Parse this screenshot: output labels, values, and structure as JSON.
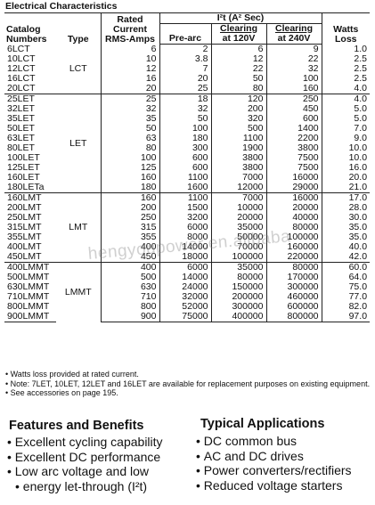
{
  "title": "Electrical Characteristics",
  "headers": {
    "catalog_line1": "Catalog",
    "catalog_line2": "Numbers",
    "type": "Type",
    "rated_line1": "Rated",
    "rated_line2": "Current",
    "rated_line3": "RMS-Amps",
    "i2t_group": "I²t (A² Sec)",
    "prearc": "Pre-arc",
    "clear120_line1": "Clearing",
    "clear120_line2": "at 120V",
    "clear240_line1": "Clearing",
    "clear240_line2": "at 240V",
    "watts_line1": "Watts",
    "watts_line2": "Loss"
  },
  "groups": [
    {
      "type": "LCT",
      "rows": [
        {
          "catalog": "6LCT",
          "rated": "6",
          "prearc": "2",
          "c120": "6",
          "c240": "9",
          "watts": "1.0"
        },
        {
          "catalog": "10LCT",
          "rated": "10",
          "prearc": "3.8",
          "c120": "12",
          "c240": "22",
          "watts": "2.5"
        },
        {
          "catalog": "12LCT",
          "rated": "12",
          "prearc": "7",
          "c120": "22",
          "c240": "32",
          "watts": "2.5"
        },
        {
          "catalog": "16LCT",
          "rated": "16",
          "prearc": "20",
          "c120": "50",
          "c240": "100",
          "watts": "2.5"
        },
        {
          "catalog": "20LCT",
          "rated": "20",
          "prearc": "25",
          "c120": "80",
          "c240": "160",
          "watts": "4.0"
        }
      ]
    },
    {
      "type": "LET",
      "rows": [
        {
          "catalog": "25LET",
          "rated": "25",
          "prearc": "18",
          "c120": "120",
          "c240": "250",
          "watts": "4.0"
        },
        {
          "catalog": "32LET",
          "rated": "32",
          "prearc": "32",
          "c120": "200",
          "c240": "450",
          "watts": "5.0"
        },
        {
          "catalog": "35LET",
          "rated": "35",
          "prearc": "50",
          "c120": "320",
          "c240": "600",
          "watts": "5.0"
        },
        {
          "catalog": "50LET",
          "rated": "50",
          "prearc": "100",
          "c120": "500",
          "c240": "1400",
          "watts": "7.0"
        },
        {
          "catalog": "63LET",
          "rated": "63",
          "prearc": "180",
          "c120": "1100",
          "c240": "2200",
          "watts": "9.0"
        },
        {
          "catalog": "80LET",
          "rated": "80",
          "prearc": "300",
          "c120": "1900",
          "c240": "3800",
          "watts": "10.0"
        },
        {
          "catalog": "100LET",
          "rated": "100",
          "prearc": "600",
          "c120": "3800",
          "c240": "7500",
          "watts": "10.0"
        },
        {
          "catalog": "125LET",
          "rated": "125",
          "prearc": "600",
          "c120": "3800",
          "c240": "7500",
          "watts": "16.0"
        },
        {
          "catalog": "160LET",
          "rated": "160",
          "prearc": "1100",
          "c120": "7000",
          "c240": "16000",
          "watts": "20.0"
        },
        {
          "catalog": "180LETa",
          "rated": "180",
          "prearc": "1600",
          "c120": "12000",
          "c240": "29000",
          "watts": "21.0"
        }
      ]
    },
    {
      "type": "LMT",
      "rows": [
        {
          "catalog": "160LMT",
          "rated": "160",
          "prearc": "1100",
          "c120": "7000",
          "c240": "16000",
          "watts": "17.0"
        },
        {
          "catalog": "200LMT",
          "rated": "200",
          "prearc": "1500",
          "c120": "10000",
          "c240": "20000",
          "watts": "28.0"
        },
        {
          "catalog": "250LMT",
          "rated": "250",
          "prearc": "3200",
          "c120": "20000",
          "c240": "40000",
          "watts": "30.0"
        },
        {
          "catalog": "315LMT",
          "rated": "315",
          "prearc": "6000",
          "c120": "35000",
          "c240": "80000",
          "watts": "35.0"
        },
        {
          "catalog": "355LMT",
          "rated": "355",
          "prearc": "8000",
          "c120": "50000",
          "c240": "100000",
          "watts": "35.0"
        },
        {
          "catalog": "400LMT",
          "rated": "400",
          "prearc": "14000",
          "c120": "70000",
          "c240": "160000",
          "watts": "40.0"
        },
        {
          "catalog": "450LMT",
          "rated": "450",
          "prearc": "18000",
          "c120": "100000",
          "c240": "220000",
          "watts": "42.0"
        }
      ]
    },
    {
      "type": "LMMT",
      "rows": [
        {
          "catalog": "400LMMT",
          "rated": "400",
          "prearc": "6000",
          "c120": "35000",
          "c240": "80000",
          "watts": "60.0"
        },
        {
          "catalog": "500LMMT",
          "rated": "500",
          "prearc": "14000",
          "c120": "80000",
          "c240": "170000",
          "watts": "64.0"
        },
        {
          "catalog": "630LMMT",
          "rated": "630",
          "prearc": "24000",
          "c120": "150000",
          "c240": "300000",
          "watts": "75.0"
        },
        {
          "catalog": "710LMMT",
          "rated": "710",
          "prearc": "32000",
          "c120": "200000",
          "c240": "460000",
          "watts": "77.0"
        },
        {
          "catalog": "800LMMT",
          "rated": "800",
          "prearc": "52000",
          "c120": "300000",
          "c240": "600000",
          "watts": "82.0"
        },
        {
          "catalog": "900LMMT",
          "rated": "900",
          "prearc": "75000",
          "c120": "400000",
          "c240": "800000",
          "watts": "97.0"
        }
      ]
    }
  ],
  "notes": [
    "• Watts loss provided at rated current.",
    "• Note: 7LET, 10LET, 12LET and 16LET are available for replacement purposes on existing equipment.",
    "• See accessories on page 195."
  ],
  "watermark": "hengyoupower.en.alibaba",
  "features": {
    "heading": "Features and Benefits",
    "items": [
      "Excellent cycling capability",
      "Excellent DC performance",
      "Low arc voltage and low",
      "energy let-through (I²t)"
    ]
  },
  "applications": {
    "heading": "Typical Applications",
    "items": [
      "DC common bus",
      "AC and DC drives",
      "Power converters/rectifiers",
      "Reduced voltage starters"
    ]
  }
}
